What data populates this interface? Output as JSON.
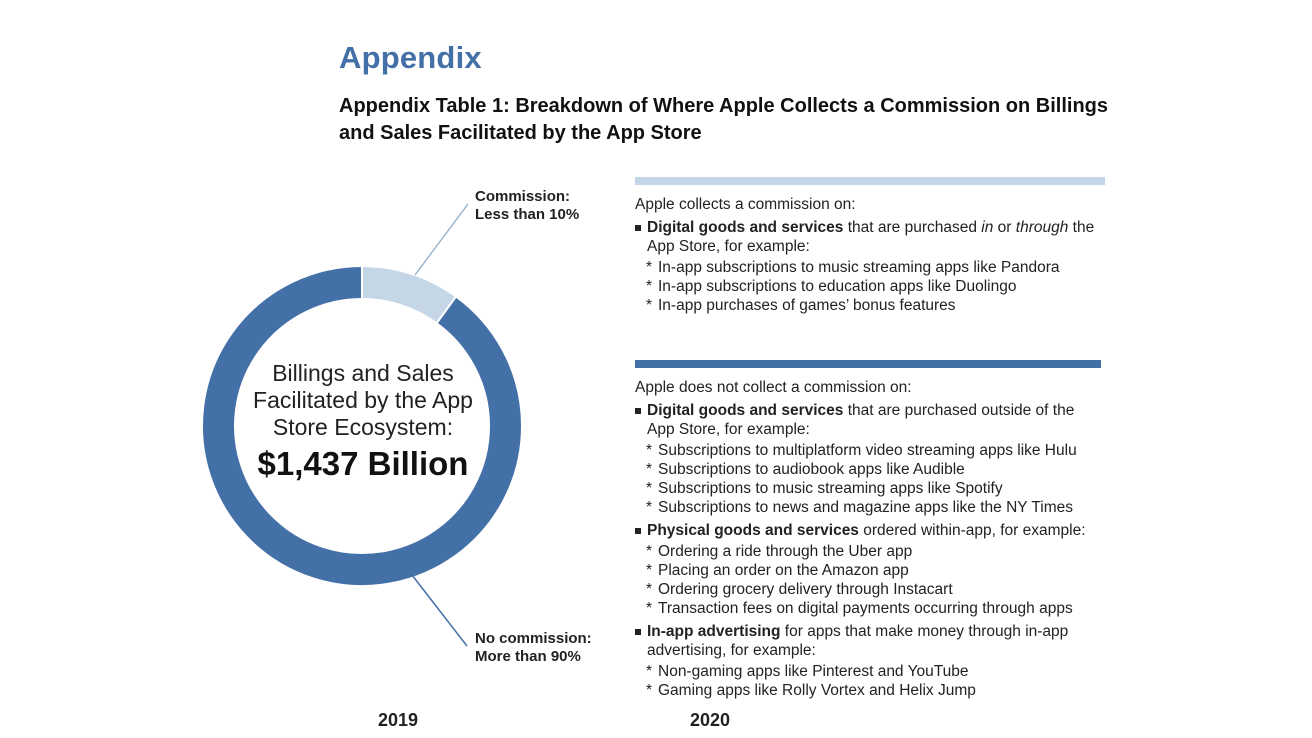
{
  "heading": "Appendix",
  "table_title": "Appendix Table 1: Breakdown of Where Apple Collects a Commission on Billings and Sales Facilitated by the App Store",
  "colors": {
    "dark_blue": "#4470a8",
    "light_blue": "#c5d6e6"
  },
  "chart_data": {
    "type": "pie",
    "variant": "donut",
    "title": "",
    "center_label": "Billings and Sales Facilitated by the App Store Ecosystem:",
    "center_value": "$1,437 Billion",
    "slices": [
      {
        "label": "Commission: Less than 10%",
        "value": 10,
        "color": "#c5d6e6"
      },
      {
        "label": "No commission: More than 90%",
        "value": 90,
        "color": "#4470a8"
      }
    ]
  },
  "callouts": {
    "commission_line1": "Commission:",
    "commission_line2": "Less than 10%",
    "nocommission_line1": "No commission:",
    "nocommission_line2": "More than 90%"
  },
  "collects": {
    "intro": "Apple collects a commission on:",
    "bullet_bold": "Digital goods and services",
    "bullet_pre": " that are purchased ",
    "bullet_in": "in",
    "bullet_or": " or ",
    "bullet_through": "through",
    "bullet_post": " the App Store, for example:",
    "examples": [
      "In-app subscriptions to music streaming apps like Pandora",
      "In-app subscriptions to education apps like Duolingo",
      "In-app purchases of games’ bonus features"
    ]
  },
  "not_collects": {
    "intro": "Apple does not collect a commission on:",
    "bullets": [
      {
        "bold": "Digital goods and services",
        "text": " that are purchased outside of the App Store, for example:",
        "examples": [
          "Subscriptions to multiplatform video streaming apps like Hulu",
          "Subscriptions to audiobook apps like Audible",
          "Subscriptions to music streaming apps like Spotify",
          "Subscriptions to news and magazine apps like the NY Times"
        ]
      },
      {
        "bold": "Physical goods and services",
        "text": " ordered within-app, for example:",
        "examples": [
          "Ordering a ride through the Uber app",
          "Placing an order on the Amazon app",
          "Ordering grocery delivery through Instacart",
          "Transaction fees on digital payments occurring through apps"
        ]
      },
      {
        "bold": "In-app advertising",
        "text": " for apps that make money through in-app advertising, for example:",
        "examples": [
          "Non-gaming apps like Pinterest and YouTube",
          "Gaming apps like Rolly Vortex and Helix Jump"
        ]
      }
    ]
  },
  "cut_off_text": [
    "2019",
    "2020"
  ]
}
